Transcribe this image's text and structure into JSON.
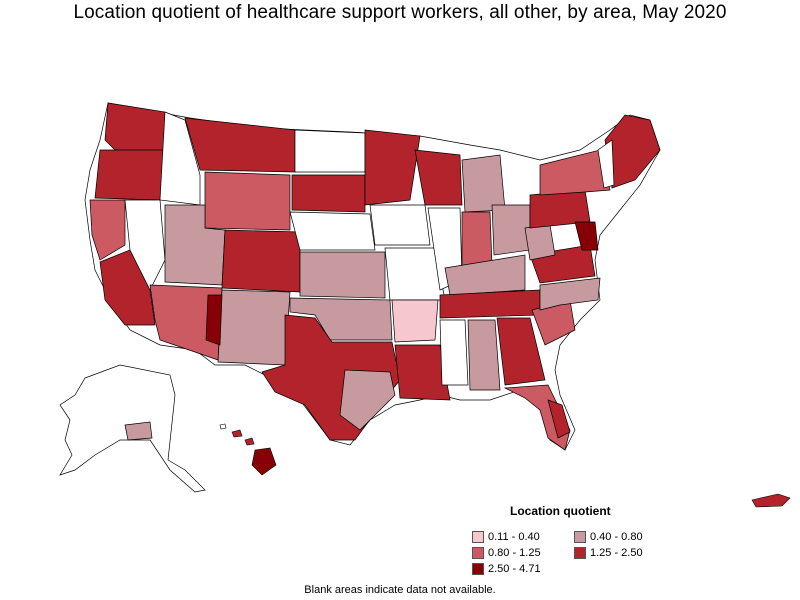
{
  "title": "Location quotient of healthcare support workers, all other, by area, May 2020",
  "legend": {
    "title": "Location quotient",
    "items": [
      {
        "label": "0.11 - 0.40",
        "color": "#f6c7ce"
      },
      {
        "label": "0.40 - 0.80",
        "color": "#c79a9f"
      },
      {
        "label": "0.80 - 1.25",
        "color": "#cc5a63"
      },
      {
        "label": "1.25 - 2.50",
        "color": "#b2232b"
      },
      {
        "label": "2.50 - 4.71",
        "color": "#870005"
      }
    ]
  },
  "footnote": "Blank areas indicate data not available.",
  "colors": {
    "no_data": "#ffffff",
    "border": "#000000",
    "c1": "#f6c7ce",
    "c2": "#c79a9f",
    "c3": "#cc5a63",
    "c4": "#b2232b",
    "c5": "#870005"
  }
}
